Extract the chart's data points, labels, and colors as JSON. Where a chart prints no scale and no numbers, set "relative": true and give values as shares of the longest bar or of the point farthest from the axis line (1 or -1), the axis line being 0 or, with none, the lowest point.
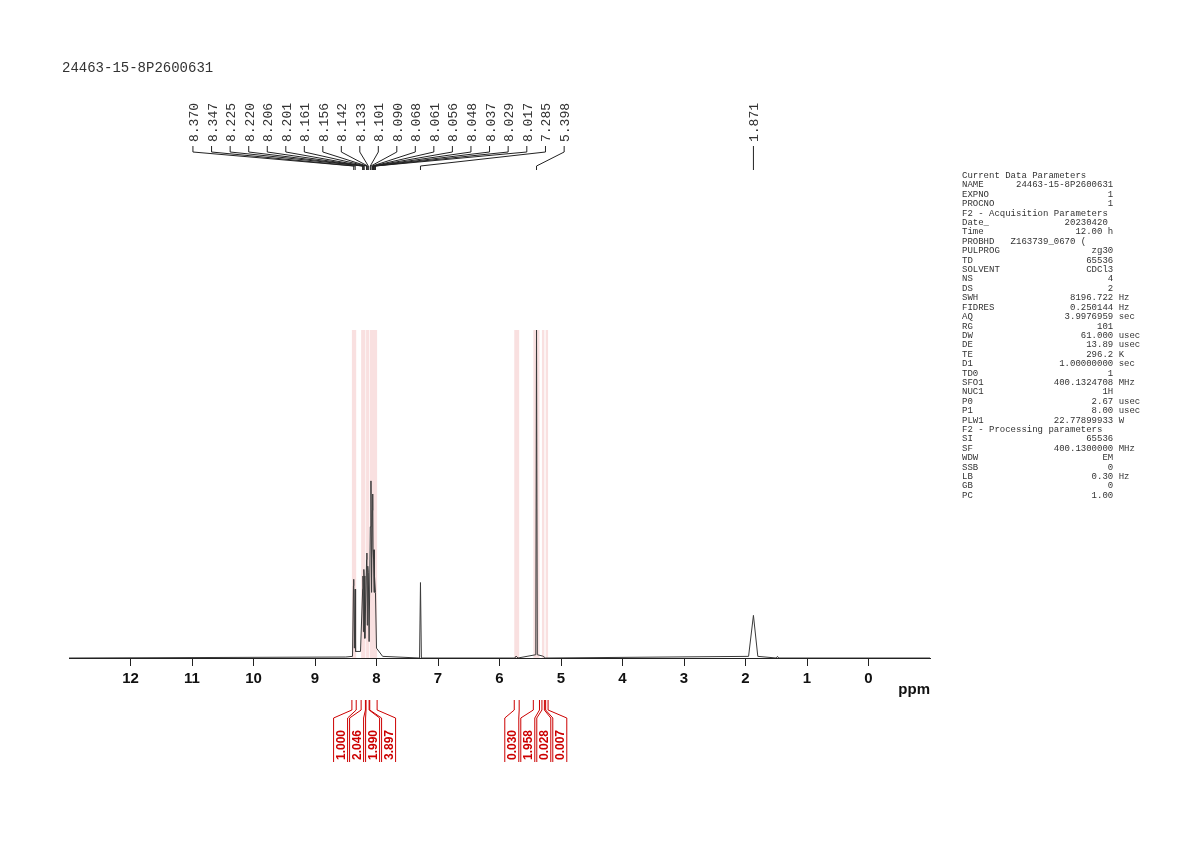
{
  "chart_data": {
    "type": "line",
    "relative": true,
    "title": "24463-15-8P2600631",
    "xlabel": "ppm",
    "xlim": [
      13,
      -1
    ],
    "xticks": [
      12,
      11,
      10,
      9,
      8,
      7,
      6,
      5,
      4,
      3,
      2,
      1,
      0
    ],
    "grid": false,
    "legend": false,
    "marker": "none",
    "series": [
      {
        "color": "#3a3a3a",
        "x": [
          13,
          8.5,
          8.39,
          8.375,
          8.37,
          8.36,
          8.347,
          8.34,
          8.26,
          8.225,
          8.22,
          8.213,
          8.206,
          8.201,
          8.19,
          8.161,
          8.156,
          8.15,
          8.142,
          8.133,
          8.12,
          8.101,
          8.09,
          8.08,
          8.068,
          8.061,
          8.056,
          8.048,
          8.04,
          8.037,
          8.029,
          8.017,
          8.0,
          7.9,
          7.3,
          7.285,
          7.27,
          5.75,
          5.73,
          5.7,
          5.41,
          5.398,
          5.385,
          5.3,
          5.25,
          1.95,
          1.871,
          1.8,
          1.5,
          1.48,
          1.46,
          -1
        ],
        "values": [
          0,
          0.003,
          0.005,
          0.22,
          0.24,
          0.03,
          0.21,
          0.02,
          0.02,
          0.21,
          0.25,
          0.08,
          0.27,
          0.25,
          0.06,
          0.3,
          0.32,
          0.1,
          0.28,
          0.26,
          0.05,
          0.4,
          0.54,
          0.2,
          0.45,
          0.5,
          0.33,
          0.3,
          0.2,
          0.33,
          0.25,
          0.2,
          0.03,
          0.005,
          0,
          0.23,
          0,
          0,
          0.006,
          0,
          0.01,
          1,
          0.01,
          0.006,
          0,
          0.005,
          0.13,
          0.005,
          0,
          0.005,
          0,
          0
        ]
      }
    ],
    "bands": [
      {
        "axis": "x",
        "from": 8.4,
        "to": 8.33,
        "label": "1.000",
        "color": "#cc0000"
      },
      {
        "axis": "x",
        "from": 8.25,
        "to": 8.18,
        "label": "2.046",
        "color": "#cc0000"
      },
      {
        "axis": "x",
        "from": 8.17,
        "to": 8.12,
        "label": "1.990",
        "color": "#cc0000"
      },
      {
        "axis": "x",
        "from": 8.11,
        "to": 7.99,
        "label": "3.897",
        "color": "#cc0000"
      },
      {
        "axis": "x",
        "from": 5.76,
        "to": 5.68,
        "label": "0.030",
        "color": "#cc0000"
      },
      {
        "axis": "x",
        "from": 5.45,
        "to": 5.35,
        "label": "1.958",
        "color": "#cc0000"
      },
      {
        "axis": "x",
        "from": 5.31,
        "to": 5.27,
        "label": "0.028",
        "color": "#cc0000"
      },
      {
        "axis": "x",
        "from": 5.25,
        "to": 5.21,
        "label": "0.007",
        "color": "#cc0000"
      }
    ],
    "annotations": [
      {
        "text": "8.370",
        "x": 8.37
      },
      {
        "text": "8.347",
        "x": 8.347
      },
      {
        "text": "8.225",
        "x": 8.225
      },
      {
        "text": "8.220",
        "x": 8.22
      },
      {
        "text": "8.206",
        "x": 8.206
      },
      {
        "text": "8.201",
        "x": 8.201
      },
      {
        "text": "8.161",
        "x": 8.161
      },
      {
        "text": "8.156",
        "x": 8.156
      },
      {
        "text": "8.142",
        "x": 8.142
      },
      {
        "text": "8.133",
        "x": 8.133
      },
      {
        "text": "8.101",
        "x": 8.101
      },
      {
        "text": "8.090",
        "x": 8.09
      },
      {
        "text": "8.068",
        "x": 8.068
      },
      {
        "text": "8.061",
        "x": 8.061
      },
      {
        "text": "8.056",
        "x": 8.056
      },
      {
        "text": "8.048",
        "x": 8.048
      },
      {
        "text": "8.037",
        "x": 8.037
      },
      {
        "text": "8.029",
        "x": 8.029
      },
      {
        "text": "8.017",
        "x": 8.017
      },
      {
        "text": "7.285",
        "x": 7.285
      },
      {
        "text": "5.398",
        "x": 5.398
      },
      {
        "text": "1.871",
        "x": 1.871
      },
      "Current Data Parameters",
      "NAME      24463-15-8P2600631",
      "EXPNO                      1",
      "PROCNO                     1",
      "F2 - Acquisition Parameters",
      "Date_              20230420",
      "Time                 12.00 h",
      "PROBHD   Z163739_0670 (",
      "PULPROG                 zg30",
      "TD                     65536",
      "SOLVENT                CDCl3",
      "NS                         4",
      "DS                         2",
      "SWH                 8196.722 Hz",
      "FIDRES              0.250144 Hz",
      "AQ                 3.9976959 sec",
      "RG                       101",
      "DW                    61.000 usec",
      "DE                     13.89 usec",
      "TE                     296.2 K",
      "D1                1.00000000 sec",
      "TD0                        1",
      "SFO1             400.1324708 MHz",
      "NUC1                      1H",
      "P0                      2.67 usec",
      "P1                      8.00 usec",
      "PLW1             22.77899933 W",
      "F2 - Processing parameters",
      "SI                     65536",
      "SF               400.1300000 MHz",
      "WDW                       EM",
      "SSB                        0",
      "LB                      0.30 Hz",
      "GB                         0",
      "PC                      1.00"
    ]
  }
}
